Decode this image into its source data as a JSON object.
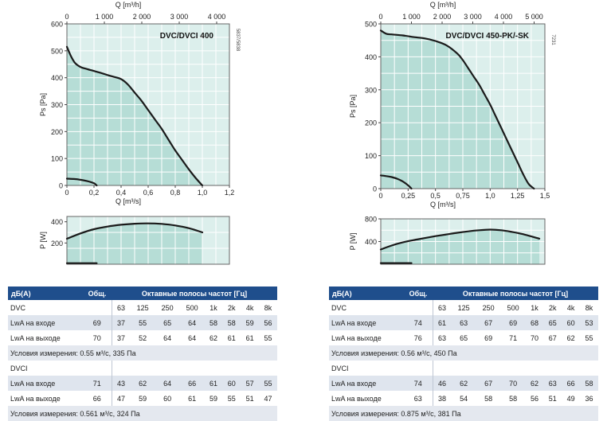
{
  "chart_data": [
    {
      "type": "line",
      "title": "DVC/DVCI 400",
      "code": "5837/5838",
      "xlabel": "Q [m³/s]",
      "xlabel_top": "Q [m³/h]",
      "ylabel": "Ps [Pa]",
      "xlim": [
        0,
        1.2
      ],
      "ylim": [
        0,
        600
      ],
      "x_ticks": [
        "0",
        "0,2",
        "0,4",
        "0,6",
        "0,8",
        "1,0",
        "1,2"
      ],
      "x_top_ticks": [
        "0",
        "1 000",
        "2 000",
        "3 000",
        "4 000"
      ],
      "y_ticks": [
        "0",
        "100",
        "200",
        "300",
        "400",
        "500",
        "600"
      ],
      "series": [
        {
          "x": [
            0.0,
            0.03,
            0.06,
            0.1,
            0.15,
            0.2,
            0.25,
            0.3,
            0.35,
            0.4,
            0.45,
            0.5,
            0.55,
            0.6,
            0.65,
            0.7,
            0.75,
            0.8,
            0.85,
            0.9,
            0.95,
            1.0
          ],
          "y": [
            515,
            480,
            455,
            440,
            432,
            425,
            418,
            410,
            403,
            395,
            375,
            345,
            315,
            280,
            245,
            210,
            170,
            130,
            95,
            60,
            28,
            0
          ]
        },
        {
          "x": [
            0.0,
            0.05,
            0.1,
            0.15,
            0.2,
            0.22
          ],
          "y": [
            25,
            24,
            21,
            16,
            8,
            0
          ]
        }
      ]
    },
    {
      "type": "line",
      "ylabel": "P [W]",
      "xlim": [
        0,
        1.2
      ],
      "ylim": [
        0,
        450
      ],
      "y_ticks": [
        "200",
        "400"
      ],
      "series": [
        {
          "x": [
            0.0,
            0.1,
            0.2,
            0.3,
            0.4,
            0.5,
            0.6,
            0.7,
            0.8,
            0.9,
            1.0
          ],
          "y": [
            240,
            290,
            330,
            355,
            372,
            382,
            385,
            380,
            365,
            340,
            300
          ]
        },
        {
          "x": [
            0.0,
            0.22
          ],
          "y": [
            10,
            10
          ]
        }
      ]
    },
    {
      "type": "line",
      "title": "DVC/DVCI 450-PK/-SK",
      "code": "7231",
      "xlabel": "Q [m³/s]",
      "xlabel_top": "Q [m³/h]",
      "ylabel": "Ps [Pa]",
      "xlim": [
        0,
        1.5
      ],
      "ylim": [
        0,
        500
      ],
      "x_ticks": [
        "0",
        "0,25",
        "0,5",
        "0,75",
        "1,0",
        "1,25",
        "1,5"
      ],
      "x_top_ticks": [
        "0",
        "1 000",
        "2 000",
        "3 000",
        "4 000",
        "5 000"
      ],
      "y_ticks": [
        "0",
        "100",
        "200",
        "300",
        "400",
        "500"
      ],
      "series": [
        {
          "x": [
            0.0,
            0.05,
            0.1,
            0.2,
            0.3,
            0.4,
            0.5,
            0.6,
            0.7,
            0.75,
            0.8,
            0.85,
            0.9,
            0.95,
            1.0,
            1.05,
            1.1,
            1.15,
            1.2,
            1.25,
            1.3,
            1.35,
            1.4
          ],
          "y": [
            480,
            470,
            468,
            465,
            460,
            456,
            448,
            435,
            410,
            390,
            365,
            340,
            315,
            285,
            255,
            220,
            185,
            150,
            115,
            80,
            45,
            15,
            0
          ]
        },
        {
          "x": [
            0.0,
            0.05,
            0.1,
            0.15,
            0.2,
            0.25,
            0.28
          ],
          "y": [
            40,
            38,
            35,
            30,
            22,
            10,
            0
          ]
        }
      ]
    },
    {
      "type": "line",
      "ylabel": "P [W]",
      "xlim": [
        0,
        1.5
      ],
      "ylim": [
        0,
        800
      ],
      "y_ticks": [
        "400",
        "800"
      ],
      "series": [
        {
          "x": [
            0.0,
            0.1,
            0.2,
            0.3,
            0.4,
            0.5,
            0.6,
            0.7,
            0.8,
            0.9,
            1.0,
            1.1,
            1.2,
            1.3,
            1.45
          ],
          "y": [
            260,
            330,
            385,
            425,
            460,
            495,
            525,
            555,
            580,
            600,
            610,
            600,
            570,
            530,
            450
          ]
        },
        {
          "x": [
            0.0,
            0.28
          ],
          "y": [
            20,
            20
          ]
        }
      ]
    }
  ],
  "tables": [
    {
      "headers": {
        "label": "дБ(А)",
        "total": "Общ.",
        "bands": "Октавные полосы частот [Гц]"
      },
      "freqs": [
        "63",
        "125",
        "250",
        "500",
        "1k",
        "2k",
        "4k",
        "8k"
      ],
      "blocks": [
        {
          "name": "DVC",
          "rows": [
            {
              "label": "LwA на входе",
              "total": "69",
              "values": [
                "37",
                "55",
                "65",
                "64",
                "58",
                "58",
                "59",
                "56"
              ]
            },
            {
              "label": "LwA на выходе",
              "total": "70",
              "values": [
                "37",
                "52",
                "64",
                "64",
                "62",
                "61",
                "61",
                "55"
              ]
            }
          ],
          "note": "Условия измерения: 0.55 м³/с, 335 Па"
        },
        {
          "name": "DVCI",
          "rows": [
            {
              "label": "LwA на входе",
              "total": "71",
              "values": [
                "43",
                "62",
                "64",
                "66",
                "61",
                "60",
                "57",
                "55"
              ]
            },
            {
              "label": "LwA на выходе",
              "total": "66",
              "values": [
                "47",
                "59",
                "60",
                "61",
                "59",
                "55",
                "51",
                "47"
              ]
            }
          ],
          "note": "Условия измерения: 0.561 м³/с, 324 Па"
        }
      ]
    },
    {
      "headers": {
        "label": "дБ(А)",
        "total": "Общ.",
        "bands": "Октавные полосы частот [Гц]"
      },
      "freqs": [
        "63",
        "125",
        "250",
        "500",
        "1k",
        "2k",
        "4k",
        "8k"
      ],
      "blocks": [
        {
          "name": "DVC",
          "rows": [
            {
              "label": "LwA на входе",
              "total": "74",
              "values": [
                "61",
                "63",
                "67",
                "69",
                "68",
                "65",
                "60",
                "53"
              ]
            },
            {
              "label": "LwA на выходе",
              "total": "76",
              "values": [
                "63",
                "65",
                "69",
                "71",
                "70",
                "67",
                "62",
                "55"
              ]
            }
          ],
          "note": "Условия измерения: 0.56 м³/с, 450 Па"
        },
        {
          "name": "DVCI",
          "rows": [
            {
              "label": "LwA на входе",
              "total": "74",
              "values": [
                "46",
                "62",
                "67",
                "70",
                "62",
                "63",
                "66",
                "58"
              ]
            },
            {
              "label": "LwA на выходе",
              "total": "63",
              "values": [
                "38",
                "54",
                "58",
                "58",
                "56",
                "51",
                "49",
                "36"
              ]
            }
          ],
          "note": "Условия измерения: 0.875 м³/с, 381 Па"
        }
      ]
    }
  ],
  "colors": {
    "fill": "#b6ddd6",
    "plot_bg": "#dcefec",
    "grid": "#ffffff",
    "curve": "#1a1a1a",
    "header": "#1f4e8c",
    "row_shade": "#dfe5ee"
  }
}
